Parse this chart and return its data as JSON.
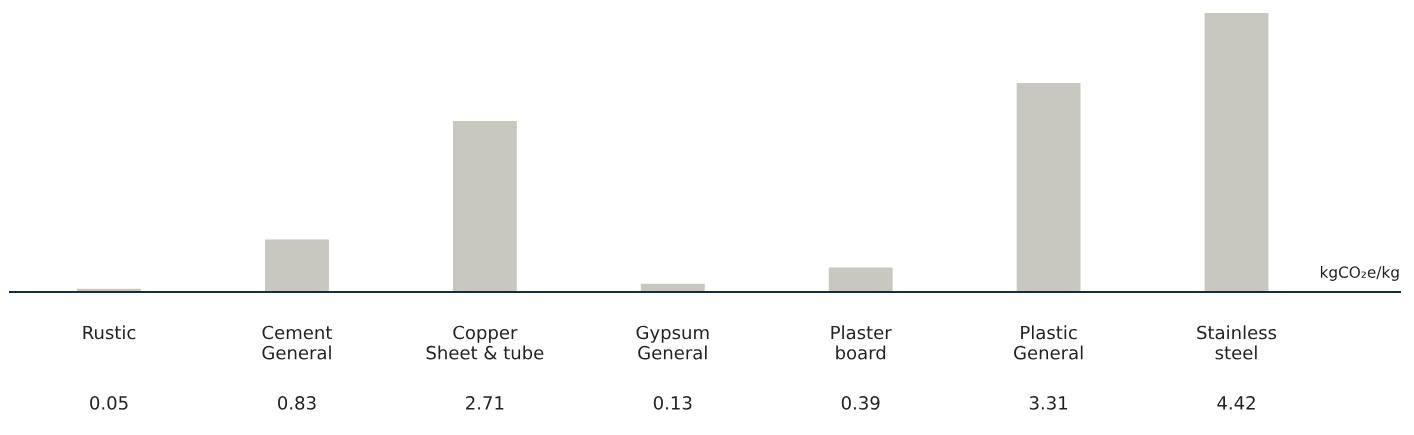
{
  "chart_data": {
    "type": "bar",
    "categories": [
      "Rustic",
      "Cement General",
      "Copper Sheet & tube",
      "Gypsum General",
      "Plaster board",
      "Plastic General",
      "Stainless steel"
    ],
    "values": [
      0.05,
      0.83,
      2.71,
      0.13,
      0.39,
      3.31,
      4.42
    ],
    "color": "#c8c8c0",
    "data_labels": true,
    "grid": false,
    "legend": false,
    "annotations": [
      {
        "text": "kgCO₂e/kg"
      }
    ]
  }
}
